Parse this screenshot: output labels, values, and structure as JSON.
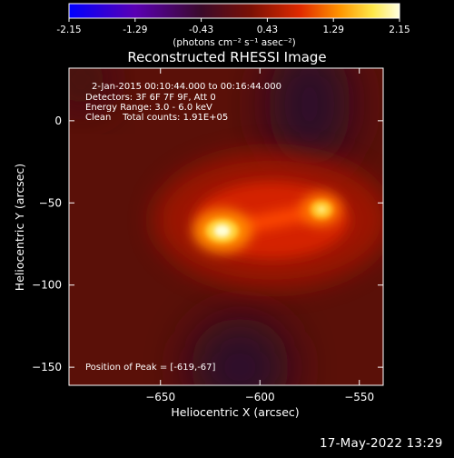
{
  "chart_data": {
    "type": "heatmap",
    "title": "Reconstructed RHESSI Image",
    "colorbar": {
      "min": -2.15,
      "max": 2.15,
      "tick_labels": [
        "-2.15",
        "-1.29",
        "-0.43",
        "0.43",
        "1.29",
        "2.15"
      ],
      "unit_label": "(photons cm⁻² s⁻¹ asec⁻²)",
      "colormap": [
        "#0000ff",
        "#5a00b4",
        "#3a0a2a",
        "#7a1005",
        "#e02a00",
        "#ff9500",
        "#ffe84a",
        "#ffffe0"
      ]
    },
    "xlabel": "Heliocentric X (arcsec)",
    "ylabel": "Heliocentric Y (arcsec)",
    "xlim": [
      -696,
      -538
    ],
    "ylim": [
      -161,
      32
    ],
    "xticks": [
      -650,
      -600,
      -550
    ],
    "yticks": [
      0,
      -50,
      -100,
      -150
    ],
    "annotations": [
      "2-Jan-2015 00:10:44.000 to 00:16:44.000",
      "Detectors: 3F 6F 7F 9F, Att 0",
      "Energy Range: 3.0 - 6.0 keV",
      "Clean    Total counts: 1.91E+05"
    ],
    "peak_label": "Position of Peak = [-619,-67]",
    "peak": [
      -619,
      -67
    ],
    "sources": [
      {
        "x": -619,
        "y": -67,
        "amplitude": 2.15
      },
      {
        "x": -569,
        "y": -54,
        "amplitude": 1.75
      }
    ]
  },
  "timestamp": "17-May-2022 13:29"
}
